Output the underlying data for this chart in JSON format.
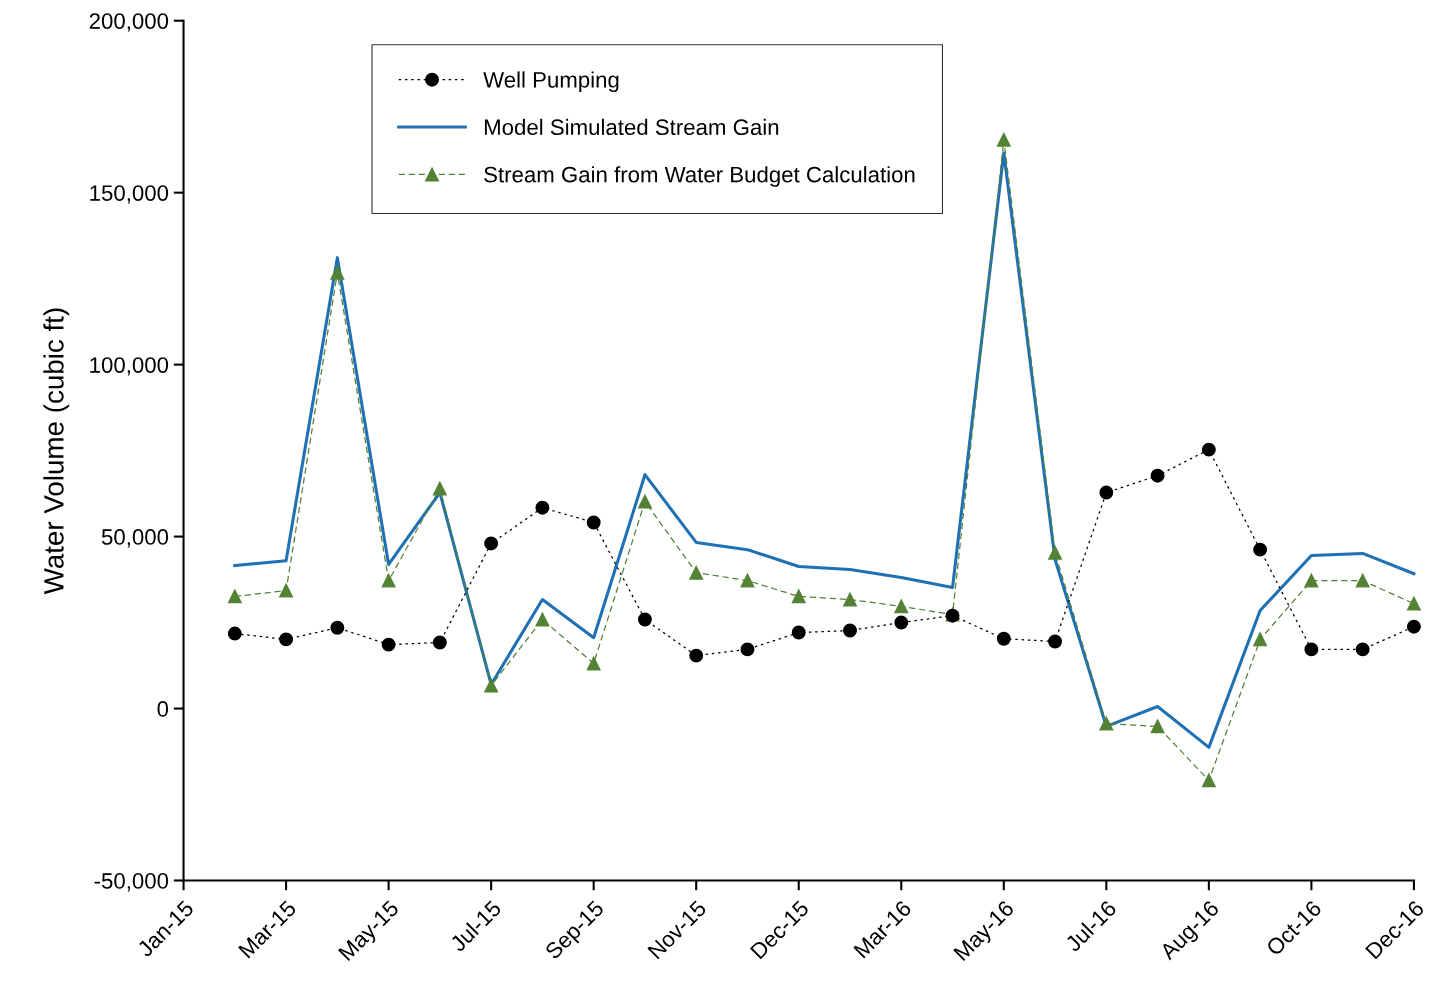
{
  "chart_data": {
    "type": "line",
    "ylabel": "Water Volume (cubic ft)",
    "categories": [
      "Jan-15",
      null,
      "Mar-15",
      null,
      "May-15",
      null,
      "Jul-15",
      null,
      "Sep-15",
      null,
      "Nov-15",
      null,
      "Dec-15",
      null,
      "Mar-16",
      null,
      "May-16",
      null,
      "Jul-16",
      null,
      "Aug-16",
      null,
      "Oct-16",
      null,
      "Dec-16"
    ],
    "ylim": [
      -50000,
      200000
    ],
    "yticks": [
      {
        "value": -50000,
        "label": "-50,000"
      },
      {
        "value": 0,
        "label": "0"
      },
      {
        "value": 50000,
        "label": "50,000"
      },
      {
        "value": 100000,
        "label": "100,000"
      },
      {
        "value": 150000,
        "label": "150,000"
      },
      {
        "value": 200000,
        "label": "200,000"
      }
    ],
    "grid": false,
    "legend": "top",
    "series": [
      {
        "name": "Well Pumping",
        "color": "#000000",
        "marker": "circle",
        "line_style": "dotted",
        "values": [
          null,
          21800,
          20100,
          23500,
          18600,
          19200,
          48000,
          58400,
          54100,
          25900,
          15400,
          17200,
          22100,
          22700,
          25000,
          27000,
          20300,
          19500,
          62800,
          67700,
          75300,
          46200,
          17200,
          17200,
          23800
        ]
      },
      {
        "name": "Model Simulated Stream Gain",
        "color": "#2070b4",
        "marker": "none",
        "line_style": "solid",
        "values": [
          null,
          41600,
          43000,
          131100,
          41900,
          62800,
          7000,
          31700,
          20600,
          68000,
          48300,
          46200,
          41300,
          40400,
          38100,
          35200,
          161600,
          43300,
          -5200,
          600,
          -11300,
          28500,
          44500,
          45100,
          39200
        ]
      },
      {
        "name": "Stream Gain from Water Budget Calculation",
        "color": "#548235",
        "marker": "triangle",
        "line_style": "dashed",
        "values": [
          null,
          32600,
          34300,
          126700,
          37200,
          64000,
          6700,
          25900,
          13100,
          60200,
          39500,
          37200,
          32600,
          31700,
          29700,
          27300,
          165400,
          45300,
          -4400,
          -5200,
          -20900,
          20100,
          37200,
          37200,
          30500
        ]
      }
    ]
  }
}
